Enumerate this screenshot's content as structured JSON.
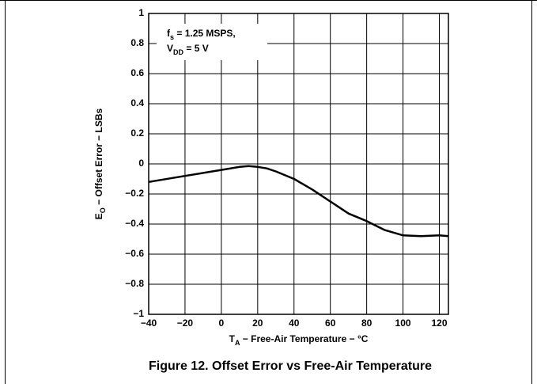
{
  "chart_data": {
    "type": "line",
    "caption": "Figure 12. Offset Error vs Free-Air Temperature",
    "x_label": {
      "main": "T",
      "sub": "A",
      "rest": " − Free-Air Temperature − °C"
    },
    "y_label": {
      "main": "E",
      "sub": "O",
      "rest": " − Offset Error − LSBs"
    },
    "annotation": [
      {
        "main": "f",
        "sub": "s",
        "rest": " = 1.25 MSPS,"
      },
      {
        "main": "V",
        "sub": "DD",
        "rest": " = 5 V"
      }
    ],
    "xlim": [
      -40,
      125
    ],
    "ylim": [
      -1,
      1
    ],
    "xticks": [
      {
        "value": -40,
        "label": "−40"
      },
      {
        "value": -20,
        "label": "−20"
      },
      0,
      20,
      40,
      60,
      80,
      100,
      120
    ],
    "yticks": [
      {
        "value": -1,
        "label": "−1"
      },
      {
        "value": -0.8,
        "label": "−0.8"
      },
      {
        "value": -0.6,
        "label": "−0.6"
      },
      {
        "value": -0.4,
        "label": "−0.4"
      },
      {
        "value": -0.2,
        "label": "−0.2"
      },
      0,
      0.2,
      0.4,
      0.6,
      0.8,
      1
    ],
    "grid": true,
    "series": [
      {
        "color": "#000000",
        "x": [
          -40,
          -20,
          0,
          10,
          15,
          20,
          25,
          30,
          40,
          50,
          60,
          70,
          80,
          90,
          100,
          110,
          120,
          125
        ],
        "values": [
          -0.12,
          -0.08,
          -0.04,
          -0.02,
          -0.015,
          -0.02,
          -0.03,
          -0.05,
          -0.1,
          -0.17,
          -0.25,
          -0.33,
          -0.38,
          -0.44,
          -0.475,
          -0.48,
          -0.475,
          -0.48
        ]
      }
    ]
  }
}
